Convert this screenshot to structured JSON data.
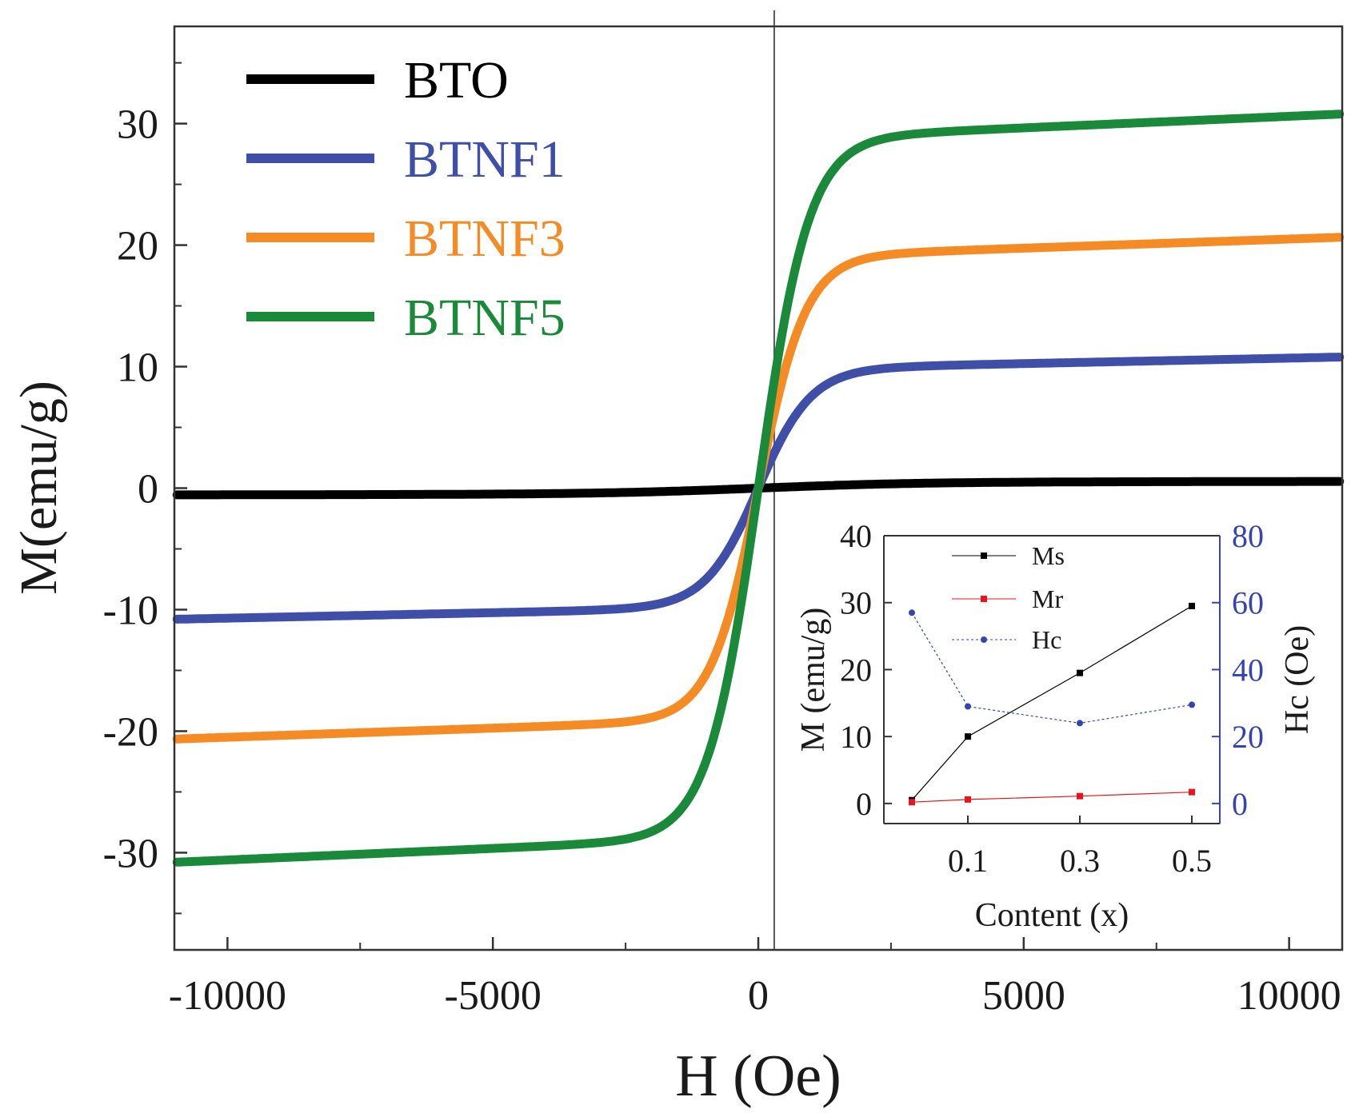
{
  "chart_data": [
    {
      "type": "line",
      "title": "",
      "xlabel": "H (Oe)",
      "ylabel": "M(emu/g)",
      "xlim": [
        -11000,
        11000
      ],
      "ylim": [
        -38,
        38
      ],
      "xticks": [
        -10000,
        -5000,
        0,
        5000,
        10000
      ],
      "xtick_labels": [
        "-10000",
        "-5000",
        "0",
        "5000",
        "10000"
      ],
      "yticks": [
        -30,
        -20,
        -10,
        0,
        10,
        20,
        30
      ],
      "ytick_labels": [
        "-30",
        "-20",
        "-10",
        "0",
        "10",
        "20",
        "30"
      ],
      "grid": false,
      "legend_position": "top-left",
      "series": [
        {
          "name": "BTO",
          "color": "#000000",
          "ms": 0.5,
          "h0": 3000,
          "extra": 5e-06
        },
        {
          "name": "BTNF1",
          "color": "#3f4fa8",
          "ms": 9.8,
          "h0": 1000,
          "extra": 9e-05
        },
        {
          "name": "BTNF3",
          "color": "#f58b25",
          "ms": 19.0,
          "h0": 900,
          "extra": 0.00015
        },
        {
          "name": "BTNF5",
          "color": "#1a8a3a",
          "ms": 28.7,
          "h0": 950,
          "extra": 0.00019
        }
      ]
    },
    {
      "type": "line",
      "title": "",
      "xlabel": "Content (x)",
      "ylabel": "M (emu/g)",
      "y2label": "Hc (Oe)",
      "x_values": [
        0,
        0.1,
        0.3,
        0.5
      ],
      "xticks": [
        0.1,
        0.3,
        0.5
      ],
      "xtick_labels": [
        "0.1",
        "0.3",
        "0.5"
      ],
      "xlim": [
        -0.05,
        0.55
      ],
      "ylim": [
        -3,
        40
      ],
      "yticks": [
        0,
        10,
        20,
        30,
        40
      ],
      "ytick_labels": [
        "0",
        "10",
        "20",
        "30",
        "40"
      ],
      "y2lim": [
        -6,
        80
      ],
      "y2ticks": [
        0,
        20,
        40,
        60,
        80
      ],
      "y2tick_labels": [
        "0",
        "20",
        "40",
        "60",
        "80"
      ],
      "legend_position": "top-left",
      "series": [
        {
          "name": "Ms",
          "axis": "left",
          "color": "#000000",
          "values": [
            0.5,
            10.0,
            19.5,
            29.5
          ]
        },
        {
          "name": "Mr",
          "axis": "left",
          "color": "#e8161c",
          "values": [
            0.2,
            0.6,
            1.1,
            1.7
          ]
        },
        {
          "name": "Hc",
          "axis": "right",
          "color": "#3644b0",
          "values": [
            57,
            29,
            24,
            29.5
          ]
        }
      ]
    }
  ]
}
